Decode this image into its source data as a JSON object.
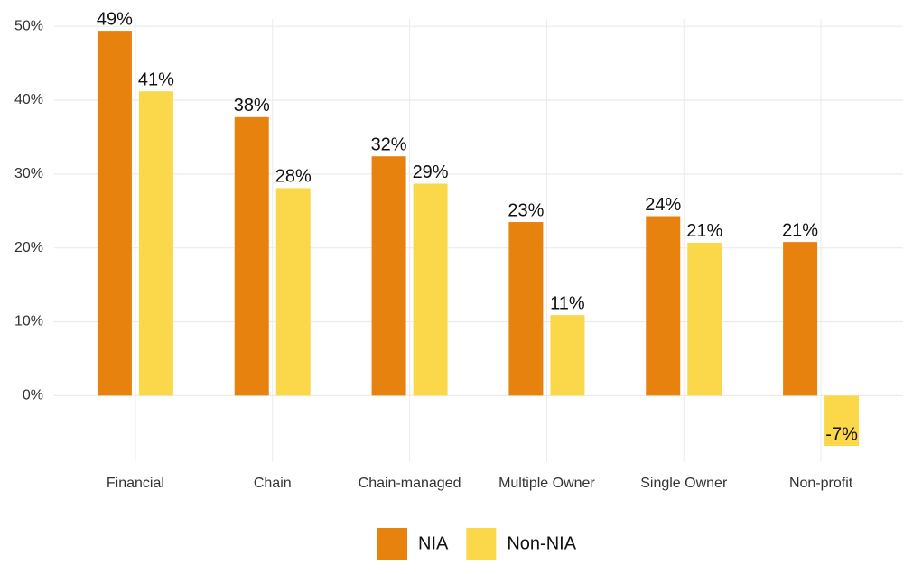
{
  "chart_data": {
    "type": "bar",
    "categories": [
      "Financial",
      "Chain",
      "Chain-managed",
      "Multiple Owner",
      "Single Owner",
      "Non-profit"
    ],
    "series": [
      {
        "name": "NIA",
        "color": "#e8820e",
        "values": [
          49.4,
          37.7,
          32.4,
          23.5,
          24.3,
          20.8
        ],
        "value_labels": [
          "49%",
          "38%",
          "32%",
          "23%",
          "24%",
          "21%"
        ]
      },
      {
        "name": "Non-NIA",
        "color": "#fbd84a",
        "values": [
          41.2,
          28.1,
          28.7,
          10.9,
          20.7,
          -6.8
        ],
        "value_labels": [
          "41%",
          "28%",
          "29%",
          "11%",
          "21%",
          "-7%"
        ]
      }
    ],
    "ylim": [
      -9,
      51
    ],
    "yticks": [
      {
        "value": 0,
        "label": "0%"
      },
      {
        "value": 10,
        "label": "10%"
      },
      {
        "value": 20,
        "label": "20%"
      },
      {
        "value": 30,
        "label": "30%"
      },
      {
        "value": 40,
        "label": "40%"
      },
      {
        "value": 50,
        "label": "50%"
      }
    ],
    "grid": true,
    "legend": "bottom"
  }
}
